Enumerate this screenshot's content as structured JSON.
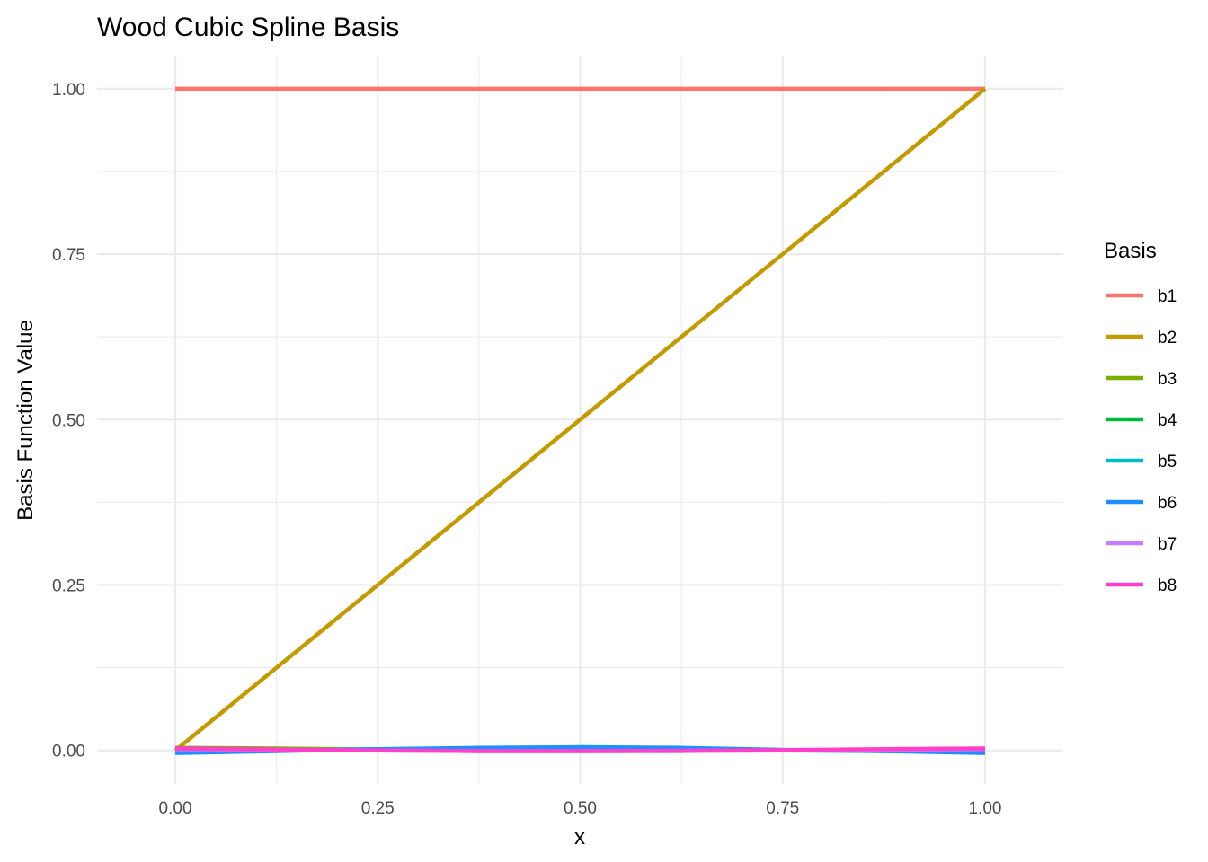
{
  "chart_data": {
    "type": "line",
    "title": "Wood Cubic Spline Basis",
    "xlabel": "x",
    "ylabel": "Basis Function Value",
    "xlim": [
      -0.0966,
      1.0966
    ],
    "ylim": [
      -0.0506,
      1.05
    ],
    "x_ticks": [
      0.0,
      0.25,
      0.5,
      0.75,
      1.0
    ],
    "x_tick_labels": [
      "0.00",
      "0.25",
      "0.50",
      "0.75",
      "1.00"
    ],
    "y_ticks": [
      0.0,
      0.25,
      0.5,
      0.75,
      1.0
    ],
    "y_tick_labels": [
      "0.00",
      "0.25",
      "0.50",
      "0.75",
      "1.00"
    ],
    "grid": true,
    "legend": {
      "title": "Basis",
      "position": "right"
    },
    "x": [
      0.0,
      0.125,
      0.25,
      0.375,
      0.5,
      0.625,
      0.75,
      0.875,
      1.0
    ],
    "series": [
      {
        "name": "b1",
        "color": "#F8766D",
        "values": [
          1.0,
          1.0,
          1.0,
          1.0,
          1.0,
          1.0,
          1.0,
          1.0,
          1.0
        ]
      },
      {
        "name": "b2",
        "color": "#C49A00",
        "values": [
          0.0,
          0.125,
          0.25,
          0.375,
          0.5,
          0.625,
          0.75,
          0.875,
          1.0
        ]
      },
      {
        "name": "b3",
        "color": "#7CAE00",
        "values": [
          0.004,
          0.003,
          0.0015,
          0.0005,
          0.0,
          0.0,
          0.0,
          0.0,
          0.0
        ]
      },
      {
        "name": "b4",
        "color": "#00BA38",
        "values": [
          0.001,
          0.0005,
          0.0005,
          0.001,
          0.001,
          0.001,
          0.0005,
          0.0005,
          0.0
        ]
      },
      {
        "name": "b5",
        "color": "#00BFC4",
        "values": [
          -0.002,
          0.0,
          0.002,
          0.003,
          0.003,
          0.002,
          0.0,
          -0.001,
          -0.002
        ]
      },
      {
        "name": "b6",
        "color": "#1F8FFF",
        "values": [
          -0.004,
          -0.001,
          0.002,
          0.004,
          0.005,
          0.004,
          0.001,
          -0.001,
          -0.004
        ]
      },
      {
        "name": "b7",
        "color": "#C77CFF",
        "values": [
          0.002,
          0.001,
          0.0,
          -0.001,
          -0.001,
          -0.001,
          0.0,
          0.001,
          0.002
        ]
      },
      {
        "name": "b8",
        "color": "#FF3FCB",
        "values": [
          0.003,
          0.0015,
          0.0,
          -0.001,
          -0.001,
          -0.0005,
          0.0005,
          0.002,
          0.003
        ]
      }
    ]
  }
}
